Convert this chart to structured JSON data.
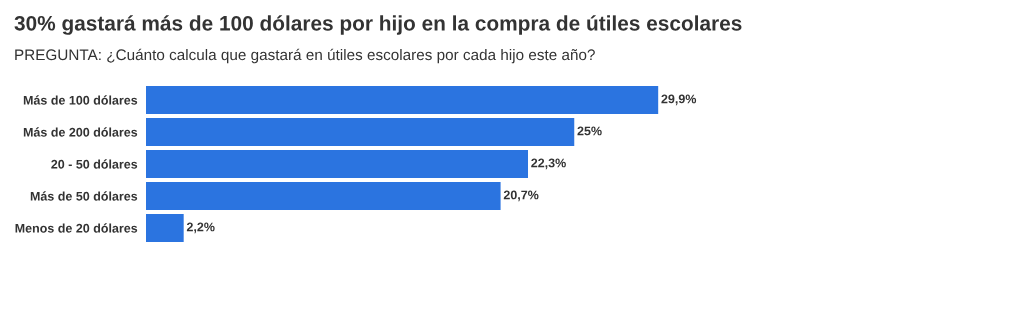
{
  "chart_data": {
    "type": "bar",
    "orientation": "horizontal",
    "title": "30% gastará más de 100 dólares por hijo en la compra de útiles escolares",
    "subtitle": "PREGUNTA: ¿Cuánto calcula que gastará en útiles escolares por cada hijo este año?",
    "categories": [
      "Más de 100 dólares",
      "Más de 200 dólares",
      "20 - 50 dólares",
      "Más de 50 dólares",
      "Menos de 20 dólares"
    ],
    "values": [
      29.9,
      25,
      22.3,
      20.7,
      2.2
    ],
    "value_labels": [
      "29,9%",
      "25%",
      "22,3%",
      "20,7%",
      "2,2%"
    ],
    "color": "#2b74e0",
    "grid": false,
    "legend": false
  }
}
